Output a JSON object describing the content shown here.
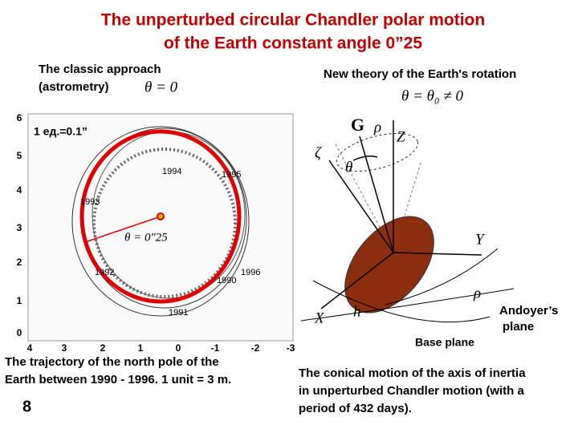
{
  "header": {
    "title": [
      "The unperturbed circular Chandler polar motion",
      "of the Earth constant angle 0”25"
    ]
  },
  "left": {
    "heading": [
      "The classic approach",
      "(astrometry)"
    ],
    "formula": "θ = 0",
    "plot": {
      "scale_note": "1 ед.=0.1”",
      "angle_label": "θ = 0\"25",
      "y_labels": [
        "6",
        "5",
        "4",
        "3",
        "2",
        "1",
        "0"
      ],
      "x_labels": [
        "4",
        "3",
        "2",
        "1",
        "0",
        "-1",
        "-2",
        "-3"
      ],
      "years": [
        "1994",
        "1995",
        "1993",
        "1992",
        "1996",
        "1990",
        "1991"
      ]
    },
    "caption": [
      "The trajectory of the  north pole of  the",
      "Earth between 1990 - 1996. 1 unit = 3 m."
    ]
  },
  "right": {
    "heading": "New theory of the Earth's rotation",
    "formula": "θ = θ₀ ≠ 0",
    "diagram": {
      "labels": [
        "G",
        "ρ",
        "Z",
        "ζ",
        "θ",
        "Y",
        "ρ",
        "X",
        "h"
      ],
      "andoyer": [
        "Andoyer’s",
        "plane"
      ],
      "base_plane": "Base plane"
    },
    "caption": [
      "The conical motion of the axis of inertia",
      "in unperturbed Chandler motion (with a",
      "period of 432 days)."
    ]
  },
  "page_number": "8"
}
